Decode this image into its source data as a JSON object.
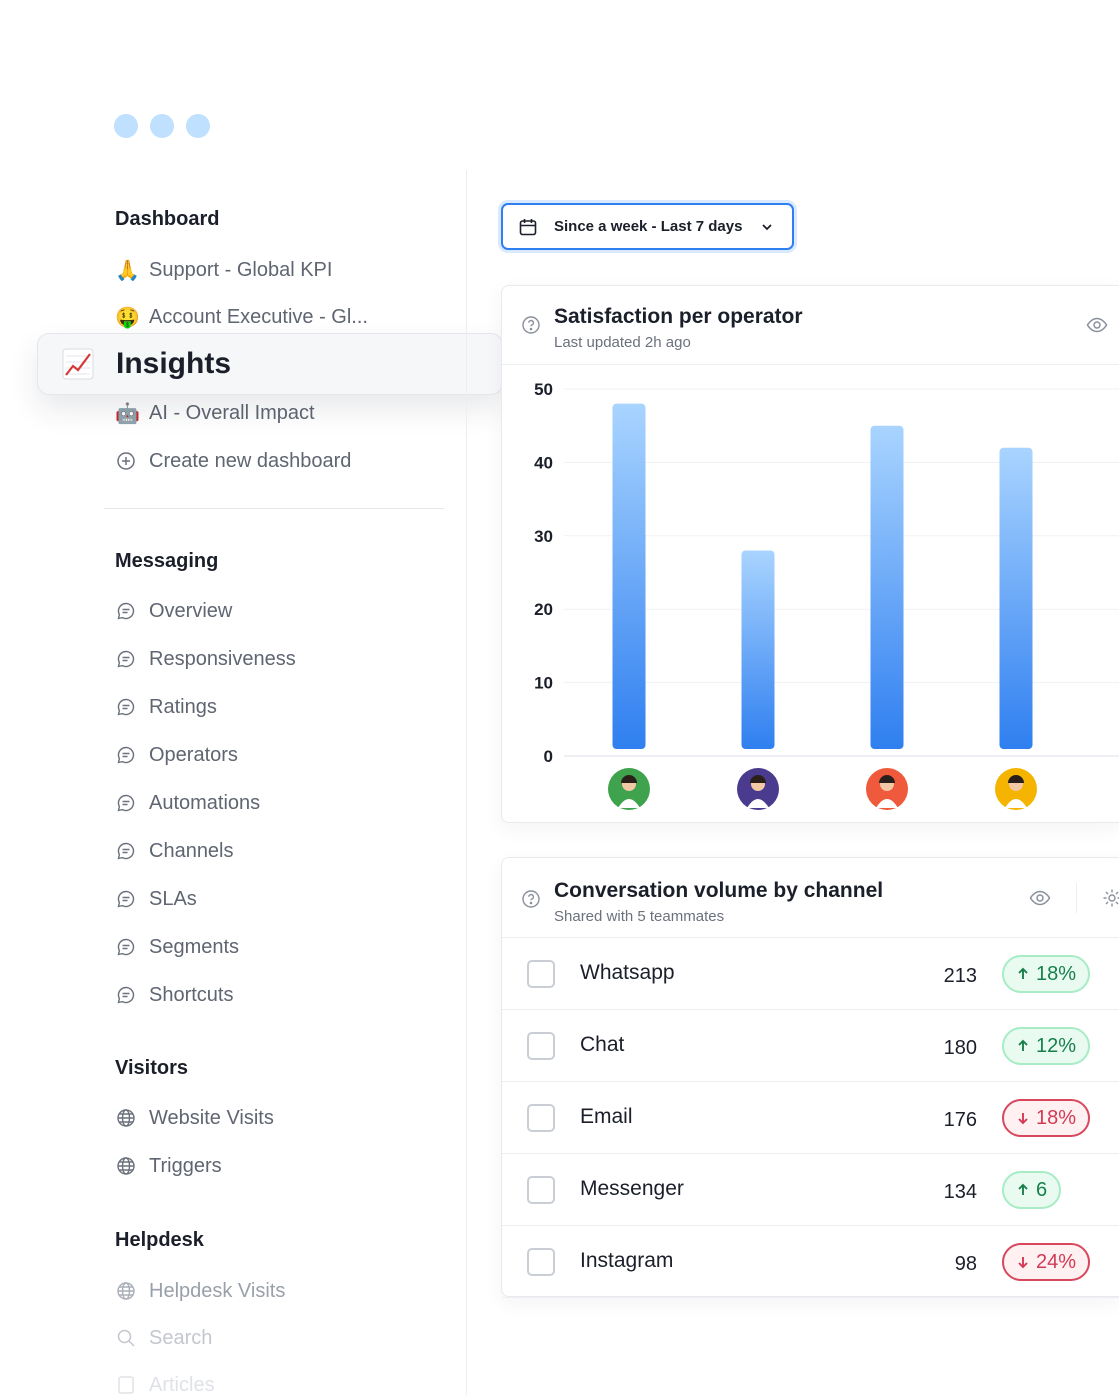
{
  "window_dots": [
    "#bfe0ff",
    "#bfe0ff",
    "#bfe0ff"
  ],
  "sidebar": {
    "dashboard": {
      "title": "Dashboard",
      "items": [
        {
          "emoji": "🙏",
          "label": "Support - Global KPI"
        },
        {
          "emoji": "🤑",
          "label": "Account Executive - Gl..."
        },
        {
          "emoji": "🤖",
          "label": "AI - Overall Impact"
        },
        {
          "icon": "plus-circle-icon",
          "label": "Create new dashboard"
        }
      ]
    },
    "selected": {
      "icon": "chart-increasing-icon",
      "label": "Insights"
    },
    "messaging": {
      "title": "Messaging",
      "items": [
        "Overview",
        "Responsiveness",
        "Ratings",
        "Operators",
        "Automations",
        "Channels",
        "SLAs",
        "Segments",
        "Shortcuts"
      ]
    },
    "visitors": {
      "title": "Visitors",
      "items": [
        "Website Visits",
        "Triggers"
      ]
    },
    "helpdesk": {
      "title": "Helpdesk",
      "items": [
        "Helpdesk Visits",
        "Search",
        "Articles"
      ]
    }
  },
  "date_filter": {
    "label": "Since a week - Last 7 days",
    "icon": "calendar-icon"
  },
  "satisfaction_card": {
    "title": "Satisfaction per operator",
    "subtitle": "Last updated 2h ago"
  },
  "chart_data": {
    "type": "bar",
    "categories": [
      "operator-1",
      "operator-2",
      "operator-3",
      "operator-4"
    ],
    "values": [
      48,
      28,
      45,
      42
    ],
    "ylim": [
      0,
      50
    ],
    "yticks": [
      "0",
      "10",
      "20",
      "30",
      "40",
      "50"
    ],
    "grid": true,
    "bar_color_top": "#a9d4ff",
    "bar_color_bottom": "#2f7ff0",
    "avatar_colors": [
      "#3fa34d",
      "#4b3b8f",
      "#f05a3c",
      "#f4b400"
    ]
  },
  "channel_card": {
    "title": "Conversation volume by channel",
    "subtitle": "Shared with 5 teammates",
    "rows": [
      {
        "name": "Whatsapp",
        "value": "213",
        "trend": "up",
        "change": "18%"
      },
      {
        "name": "Chat",
        "value": "180",
        "trend": "up",
        "change": "12%"
      },
      {
        "name": "Email",
        "value": "176",
        "trend": "down",
        "change": "18%"
      },
      {
        "name": "Messenger",
        "value": "134",
        "trend": "up",
        "change": "6"
      },
      {
        "name": "Instagram",
        "value": "98",
        "trend": "down",
        "change": "24%"
      }
    ]
  }
}
